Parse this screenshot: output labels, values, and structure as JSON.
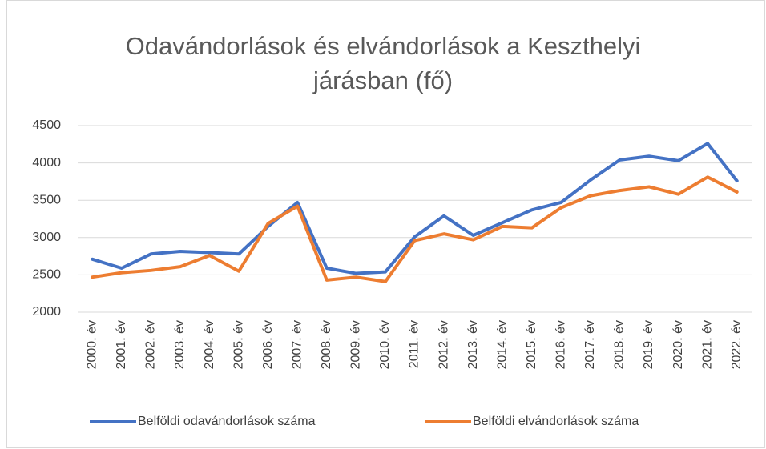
{
  "chart_data": {
    "type": "line",
    "title": "Odavándorlások és elvándorlások a Keszthelyi járásban (fő)",
    "categories": [
      "2000. év",
      "2001. év",
      "2002. év",
      "2003. év",
      "2004. év",
      "2005. év",
      "2006. év",
      "2007. év",
      "2008. év",
      "2009. év",
      "2010. év",
      "2011. év",
      "2012. év",
      "2013. év",
      "2014. év",
      "2015. év",
      "2016. év",
      "2017. év",
      "2018. év",
      "2019. év",
      "2020. év",
      "2021. év",
      "2022. év"
    ],
    "series": [
      {
        "name": "Belföldi odavándorlások száma",
        "color": "#4472c4",
        "values": [
          2710,
          2590,
          2780,
          2815,
          2800,
          2780,
          3150,
          3470,
          2590,
          2520,
          2540,
          3010,
          3290,
          3030,
          3200,
          3370,
          3470,
          3770,
          4040,
          4090,
          4030,
          4260,
          3760
        ]
      },
      {
        "name": "Belföldi elvándorlások száma",
        "color": "#ed7d31",
        "values": [
          2470,
          2530,
          2560,
          2610,
          2760,
          2550,
          3190,
          3420,
          2430,
          2470,
          2410,
          2960,
          3050,
          2970,
          3150,
          3130,
          3400,
          3560,
          3630,
          3680,
          3580,
          3810,
          3610
        ]
      }
    ],
    "ylim": [
      2000,
      4500
    ],
    "yticks": [
      2000,
      2500,
      3000,
      3500,
      4000,
      4500
    ],
    "grid": true,
    "legend": "bottom"
  }
}
